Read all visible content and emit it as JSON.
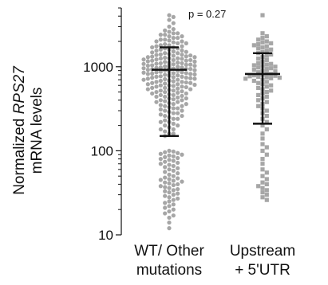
{
  "chart_data": {
    "type": "scatter",
    "title": "",
    "annotation": "p = 0.27",
    "ylabel": {
      "prefix": "Normalized ",
      "gene": "RPS27",
      "suffix": "mRNA levels"
    },
    "yscale": "log",
    "ylim": [
      10,
      5000
    ],
    "yticks": [
      10,
      100,
      1000
    ],
    "ytick_labels": [
      "10",
      "100",
      "1000"
    ],
    "categories": [
      {
        "line1": "WT/ Other",
        "line2": "mutations"
      },
      {
        "line1": "Upstream",
        "line2": "+ 5'UTR"
      }
    ],
    "series": [
      {
        "marker": "circle",
        "color": "#a6a6a6",
        "median": 920,
        "whisker_low": 150,
        "whisker_high": 1700,
        "values": [
          4100,
          3900,
          3600,
          3300,
          3000,
          2800,
          2600,
          2500,
          2400,
          2300,
          2200,
          2100,
          2050,
          2000,
          1950,
          1900,
          1850,
          1800,
          1750,
          1700,
          1650,
          1600,
          1560,
          1520,
          1480,
          1450,
          1420,
          1390,
          1360,
          1330,
          1300,
          1280,
          1260,
          1240,
          1220,
          1200,
          1180,
          1160,
          1140,
          1120,
          1100,
          1085,
          1070,
          1055,
          1040,
          1025,
          1010,
          1000,
          990,
          980,
          970,
          960,
          950,
          940,
          930,
          920,
          910,
          900,
          890,
          880,
          870,
          860,
          850,
          840,
          830,
          820,
          810,
          800,
          790,
          780,
          770,
          760,
          750,
          740,
          730,
          720,
          710,
          700,
          690,
          680,
          670,
          660,
          650,
          640,
          630,
          620,
          610,
          600,
          590,
          580,
          570,
          560,
          550,
          540,
          530,
          520,
          510,
          500,
          490,
          480,
          470,
          460,
          450,
          440,
          430,
          420,
          410,
          400,
          390,
          380,
          370,
          360,
          350,
          340,
          330,
          320,
          310,
          300,
          290,
          280,
          270,
          260,
          250,
          240,
          230,
          220,
          210,
          200,
          190,
          180,
          170,
          160,
          150,
          1000,
          980,
          960,
          1040,
          1060,
          940,
          1020,
          900,
          880,
          1100,
          1150,
          1200,
          860,
          840,
          1250,
          1300,
          820,
          1350,
          800,
          1400,
          950,
          970,
          1010,
          1030,
          990,
          1080,
          920,
          1120,
          1180,
          1220,
          780,
          760,
          740,
          720,
          1260,
          1320,
          700,
          680,
          660,
          1380,
          1450,
          1500,
          640,
          620,
          600,
          1550,
          1600,
          580,
          560,
          1650,
          1700,
          540,
          520,
          1750,
          500,
          480,
          1800,
          460,
          1900,
          440,
          2000,
          420,
          2100,
          400,
          2200,
          380,
          360,
          2300,
          340,
          2400,
          320,
          2500,
          300,
          2700,
          280,
          260,
          240,
          220,
          200,
          180,
          160,
          100,
          98,
          96,
          94,
          92,
          90,
          88,
          86,
          84,
          82,
          80,
          78,
          76,
          74,
          72,
          70,
          68,
          66,
          64,
          62,
          60,
          58,
          56,
          54,
          52,
          50,
          48,
          47,
          46,
          45,
          44,
          43,
          42,
          41,
          40,
          39,
          38,
          37,
          36,
          35,
          34,
          33,
          32,
          31,
          30,
          29,
          28,
          27,
          26,
          25,
          24,
          23,
          22,
          21,
          20,
          19,
          18,
          17,
          16,
          14,
          12
        ]
      },
      {
        "marker": "square",
        "color": "#a6a6a6",
        "median": 820,
        "whisker_low": 210,
        "whisker_high": 1450,
        "values": [
          4100,
          2500,
          2300,
          2200,
          2100,
          2000,
          1950,
          1900,
          1850,
          1800,
          1750,
          1700,
          1650,
          1600,
          1550,
          1500,
          1450,
          1400,
          1350,
          1300,
          1250,
          1200,
          1150,
          1100,
          1080,
          1060,
          1040,
          1020,
          1000,
          980,
          960,
          940,
          920,
          900,
          880,
          860,
          840,
          820,
          800,
          790,
          780,
          770,
          760,
          750,
          740,
          730,
          720,
          700,
          680,
          660,
          640,
          620,
          600,
          580,
          560,
          540,
          520,
          500,
          480,
          460,
          440,
          420,
          400,
          380,
          360,
          340,
          320,
          300,
          280,
          260,
          240,
          220,
          200,
          180,
          160,
          140,
          120,
          110,
          100,
          90,
          80,
          70,
          60,
          55,
          50,
          46,
          42,
          40,
          38,
          36,
          34,
          32,
          30,
          28,
          26
        ]
      }
    ]
  }
}
